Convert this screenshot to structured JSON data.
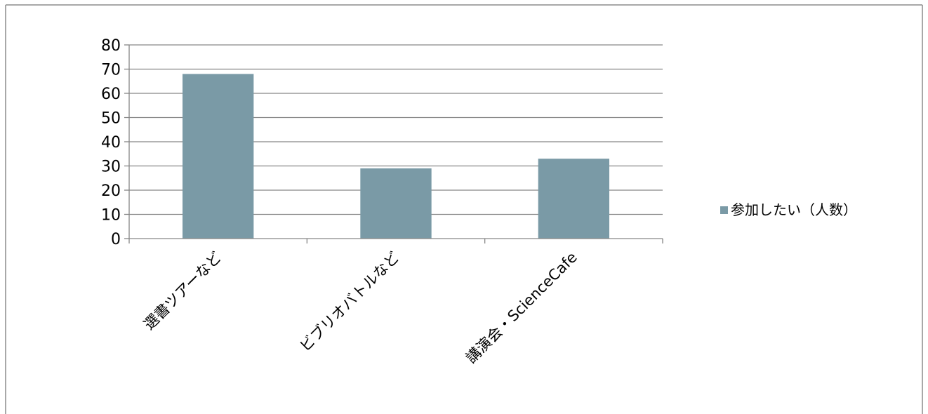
{
  "chart_data": {
    "type": "bar",
    "categories": [
      "選書ツアーなど",
      "ビブリオバトルなど",
      "講演会・ScienceCafe"
    ],
    "series": [
      {
        "name": "参加したい（人数）",
        "values": [
          68,
          29,
          33
        ],
        "color": "#7A9AA6"
      }
    ],
    "title": "",
    "xlabel": "",
    "ylabel": "",
    "ylim": [
      0,
      80
    ],
    "yticks": [
      0,
      10,
      20,
      30,
      40,
      50,
      60,
      70,
      80
    ],
    "grid": true,
    "legend_position": "right",
    "colors": {
      "bar": "#7A9AA6",
      "grid": "#868686",
      "axis": "#868686",
      "frame": "#8c8c8c"
    }
  }
}
